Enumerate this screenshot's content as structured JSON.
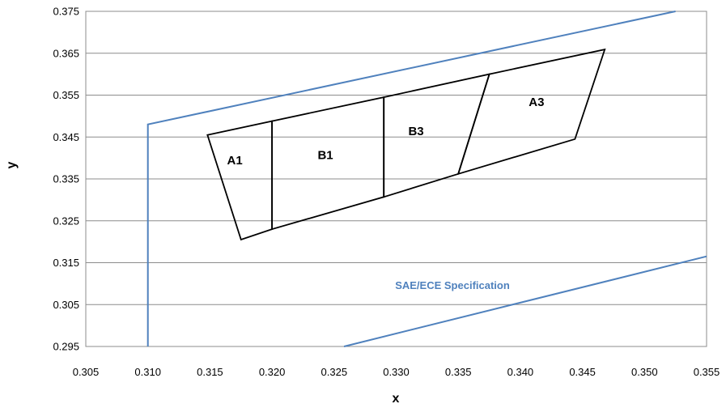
{
  "chart_data": {
    "type": "line",
    "title": "",
    "xlabel": "x",
    "ylabel": "y",
    "xlim": [
      0.305,
      0.355
    ],
    "ylim": [
      0.295,
      0.375
    ],
    "xticks": [
      "0.305",
      "0.310",
      "0.315",
      "0.320",
      "0.325",
      "0.330",
      "0.335",
      "0.340",
      "0.345",
      "0.350",
      "0.355"
    ],
    "yticks": [
      "0.295",
      "0.305",
      "0.315",
      "0.325",
      "0.335",
      "0.345",
      "0.355",
      "0.365",
      "0.375"
    ],
    "grid": "horizontal",
    "colors": {
      "spec": "#4f81bd",
      "regions": "#000000",
      "grid": "#8c8c8c"
    },
    "spec_boundary": {
      "name": "SAE/ECE Specification",
      "upper": [
        [
          0.31,
          0.295
        ],
        [
          0.31,
          0.348
        ],
        [
          0.3525,
          0.375
        ]
      ],
      "lower": [
        [
          0.3258,
          0.295
        ],
        [
          0.355,
          0.3165
        ]
      ]
    },
    "regions": [
      {
        "label": "A1",
        "label_at": [
          0.317,
          0.3385
        ],
        "polygon": [
          [
            0.3148,
            0.3455
          ],
          [
            0.32,
            0.3488
          ],
          [
            0.32,
            0.323
          ],
          [
            0.3175,
            0.3205
          ]
        ]
      },
      {
        "label": "B1",
        "label_at": [
          0.3243,
          0.3397
        ],
        "polygon": [
          [
            0.32,
            0.3488
          ],
          [
            0.329,
            0.3545
          ],
          [
            0.329,
            0.3307
          ],
          [
            0.32,
            0.323
          ]
        ]
      },
      {
        "label": "B3",
        "label_at": [
          0.3316,
          0.3454
        ],
        "polygon": [
          [
            0.329,
            0.3545
          ],
          [
            0.3375,
            0.36
          ],
          [
            0.335,
            0.3362
          ],
          [
            0.329,
            0.3307
          ]
        ]
      },
      {
        "label": "A3",
        "label_at": [
          0.3413,
          0.3524
        ],
        "polygon": [
          [
            0.3375,
            0.36
          ],
          [
            0.3468,
            0.3659
          ],
          [
            0.3444,
            0.3445
          ],
          [
            0.335,
            0.3362
          ]
        ]
      }
    ]
  }
}
